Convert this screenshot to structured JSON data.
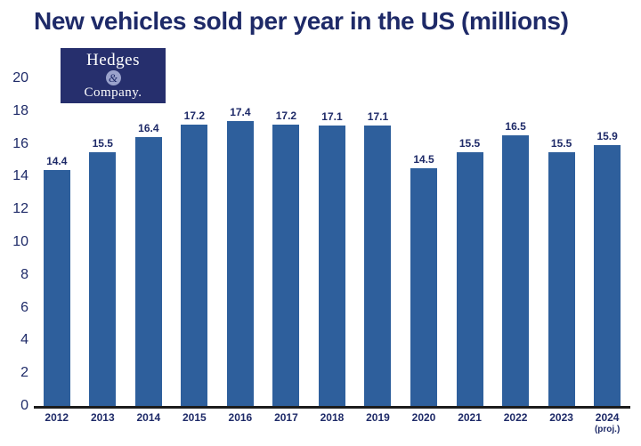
{
  "chart_data": {
    "type": "bar",
    "title": "New vehicles sold per year in the US (millions)",
    "categories": [
      "2012",
      "2013",
      "2014",
      "2015",
      "2016",
      "2017",
      "2018",
      "2019",
      "2020",
      "2021",
      "2022",
      "2023",
      "2024"
    ],
    "sublabels": [
      "",
      "",
      "",
      "",
      "",
      "",
      "",
      "",
      "",
      "",
      "",
      "",
      "(proj.)"
    ],
    "values": [
      14.4,
      15.5,
      16.4,
      17.2,
      17.4,
      17.2,
      17.1,
      17.1,
      14.5,
      15.5,
      16.5,
      15.5,
      15.9
    ],
    "ylim": [
      0,
      20
    ],
    "yticks": [
      0,
      2,
      4,
      6,
      8,
      10,
      12,
      14,
      16,
      18,
      20
    ],
    "grid": false,
    "legend": "none",
    "bar_color": "#2e5f9c",
    "text_color": "#1e2a68"
  },
  "logo": {
    "line1": "Hedges",
    "line2": "&",
    "line3": "Company."
  }
}
